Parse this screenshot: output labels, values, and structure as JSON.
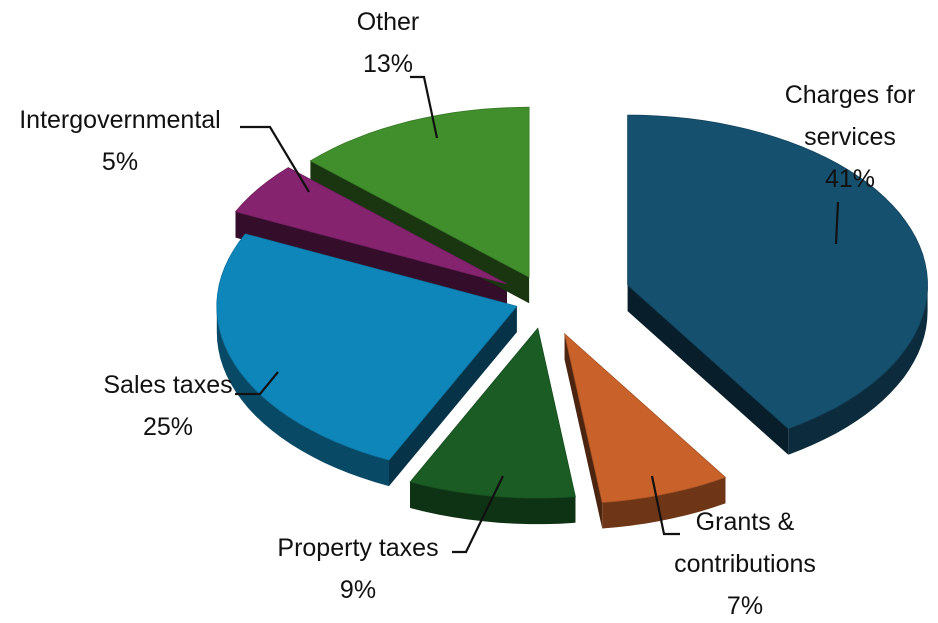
{
  "chart_data": {
    "type": "pie",
    "title": "",
    "exploded": true,
    "three_d": true,
    "slices": [
      {
        "label": "Charges for services",
        "label_lines": [
          "Charges for",
          "services"
        ],
        "value_label": "41%",
        "value": 41,
        "color": "#15506e"
      },
      {
        "label": "Grants & contributions",
        "label_lines": [
          "Grants &",
          "contributions"
        ],
        "value_label": "7%",
        "value": 7,
        "color": "#c8622a"
      },
      {
        "label": "Property taxes",
        "label_lines": [
          "Property taxes"
        ],
        "value_label": "9%",
        "value": 9,
        "color": "#1a5c24"
      },
      {
        "label": "Sales taxes",
        "label_lines": [
          "Sales taxes"
        ],
        "value_label": "25%",
        "value": 25,
        "color": "#0f86ba"
      },
      {
        "label": "Intergovernmental",
        "label_lines": [
          "Intergovernmental"
        ],
        "value_label": "5%",
        "value": 5,
        "color": "#85236f"
      },
      {
        "label": "Other",
        "label_lines": [
          "Other"
        ],
        "value_label": "13%",
        "value": 13,
        "color": "#418f2c"
      }
    ]
  }
}
